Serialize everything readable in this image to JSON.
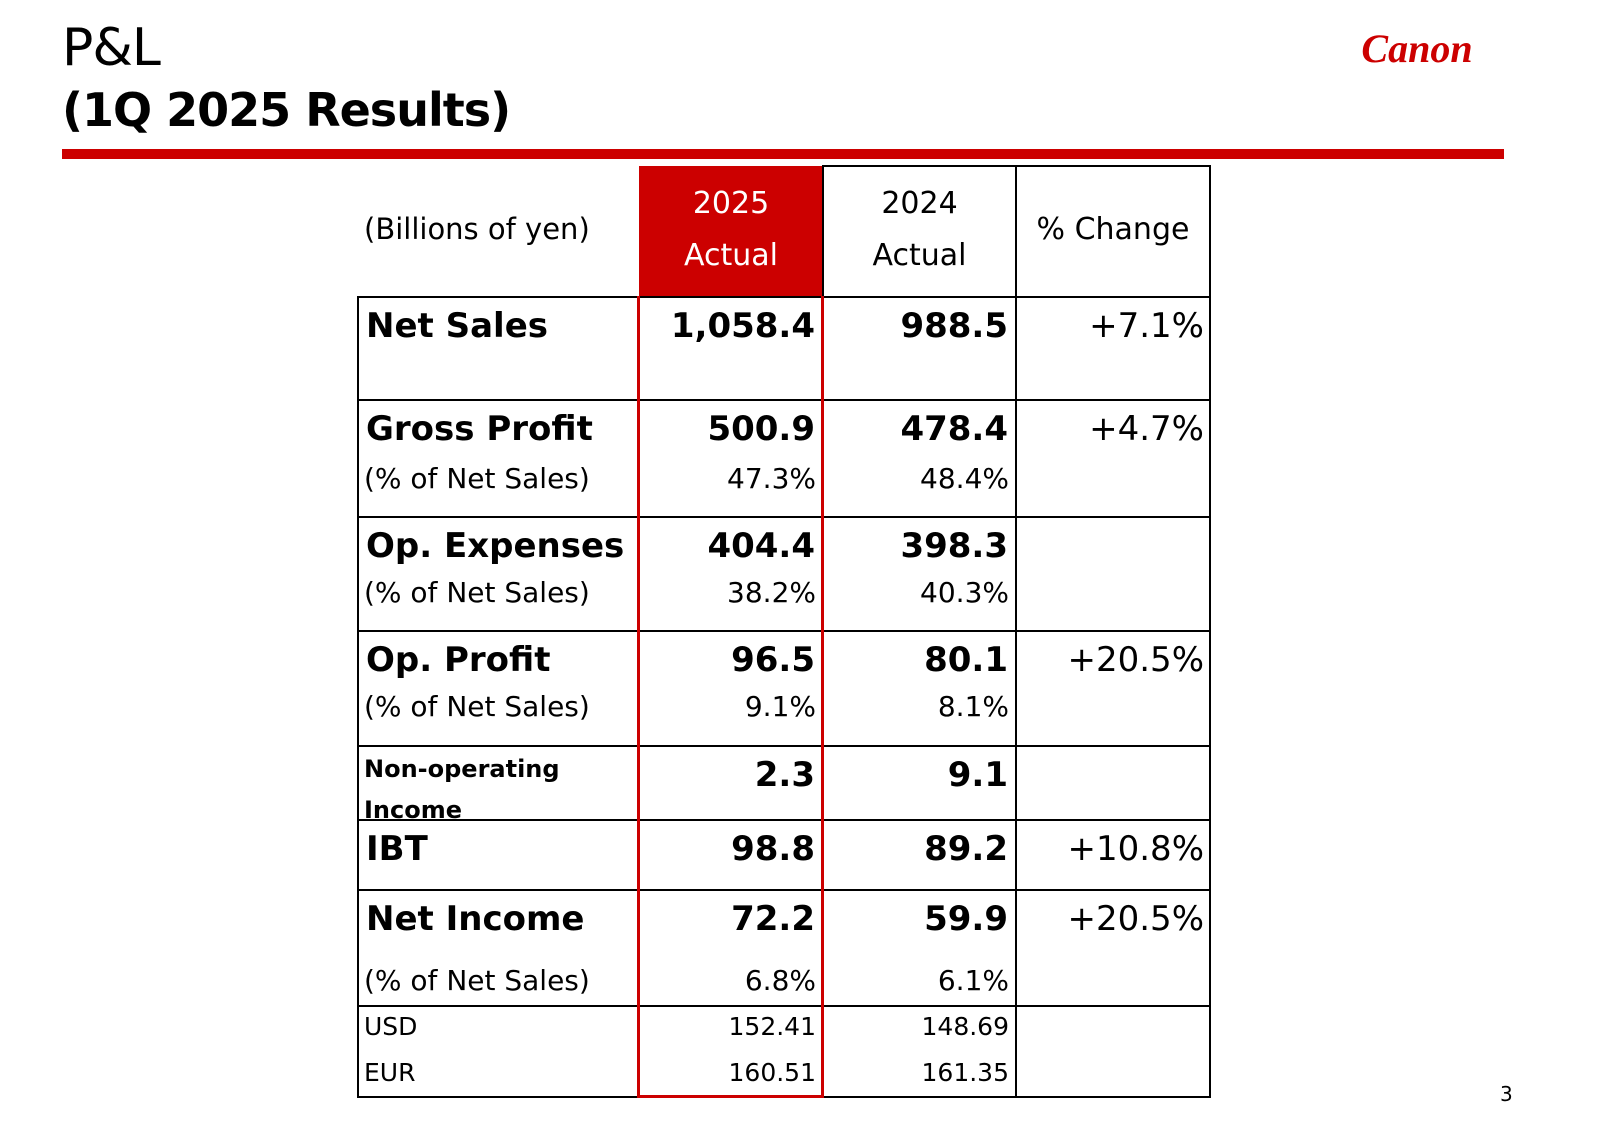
{
  "header": {
    "title": "P&L",
    "subtitle": "(1Q 2025 Results)"
  },
  "brand": {
    "logo_text": "Canon",
    "color": "#cc0000"
  },
  "page_number": "3",
  "table": {
    "unit_label": "(Billions of yen)",
    "columns": [
      {
        "line1": "2025",
        "line2": "Actual"
      },
      {
        "line1": "2024",
        "line2": "Actual"
      },
      {
        "label": "% Change"
      }
    ],
    "rows": {
      "net_sales": {
        "label": "Net Sales",
        "v2025": "1,058.4",
        "v2024": "988.5",
        "change": "+7.1%"
      },
      "gross_profit": {
        "label": "Gross Profit",
        "sub_label": "(% of Net Sales)",
        "v2025": "500.9",
        "v2024": "478.4",
        "pct2025": "47.3%",
        "pct2024": "48.4%",
        "change": "+4.7%"
      },
      "op_expenses": {
        "label": "Op. Expenses",
        "sub_label": "(% of Net Sales)",
        "v2025": "404.4",
        "v2024": "398.3",
        "pct2025": "38.2%",
        "pct2024": "40.3%",
        "change": ""
      },
      "op_profit": {
        "label": "Op. Profit",
        "sub_label": "(% of Net Sales)",
        "v2025": "96.5",
        "v2024": "80.1",
        "pct2025": "9.1%",
        "pct2024": "8.1%",
        "change": "+20.5%"
      },
      "non_operating": {
        "label_line1": "Non-operating",
        "label_line2": "Income",
        "v2025": "2.3",
        "v2024": "9.1",
        "change": ""
      },
      "ibt": {
        "label": "IBT",
        "v2025": "98.8",
        "v2024": "89.2",
        "change": "+10.8%"
      },
      "net_income": {
        "label": "Net Income",
        "sub_label": "(% of Net Sales)",
        "v2025": "72.2",
        "v2024": "59.9",
        "pct2025": "6.8%",
        "pct2024": "6.1%",
        "change": "+20.5%"
      },
      "fx": {
        "usd_label": "USD",
        "usd2025": "152.41",
        "usd2024": "148.69",
        "eur_label": "EUR",
        "eur2025": "160.51",
        "eur2024": "161.35"
      }
    }
  }
}
